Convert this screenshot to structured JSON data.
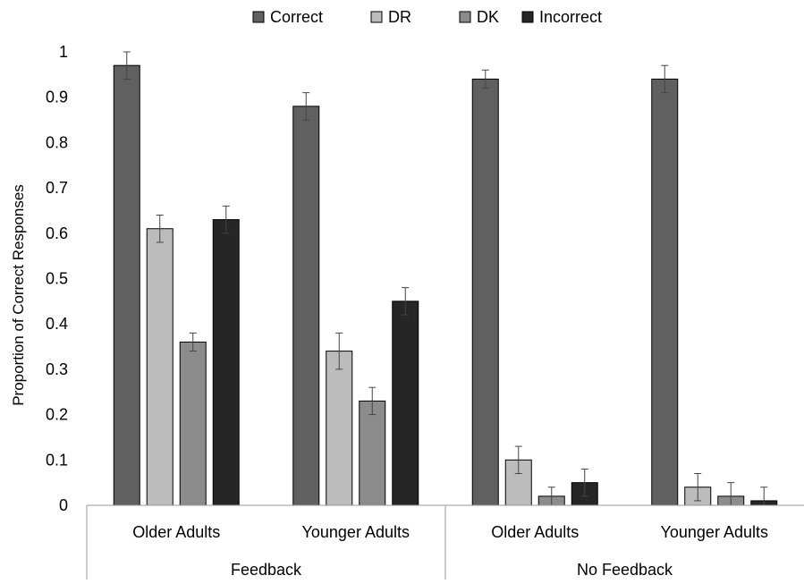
{
  "chart_data": {
    "type": "bar",
    "title": "",
    "ylabel": "Proportion of Correct Responses",
    "xlabel": "",
    "ylim": [
      0,
      1
    ],
    "yticks": [
      0,
      0.1,
      0.2,
      0.3,
      0.4,
      0.5,
      0.6,
      0.7,
      0.8,
      0.9,
      1
    ],
    "ytick_labels": [
      "0",
      "0.1",
      "0.2",
      "0.3",
      "0.4",
      "0.5",
      "0.6",
      "0.7",
      "0.8",
      "0.9",
      "1"
    ],
    "grid": false,
    "legend_position": "top",
    "groups": [
      {
        "label": "Feedback",
        "subcategories": [
          "Older Adults",
          "Younger Adults"
        ]
      },
      {
        "label": "No Feedback",
        "subcategories": [
          "Older Adults",
          "Younger Adults"
        ]
      }
    ],
    "categories": [
      "Older Adults",
      "Younger Adults",
      "Older Adults",
      "Younger Adults"
    ],
    "series": [
      {
        "name": "Correct",
        "color": "#606060",
        "values": [
          0.97,
          0.88,
          0.94,
          0.94
        ],
        "errors": [
          0.03,
          0.03,
          0.02,
          0.03
        ]
      },
      {
        "name": "DR",
        "color": "#bcbcbc",
        "values": [
          0.61,
          0.34,
          0.1,
          0.04
        ],
        "errors": [
          0.03,
          0.04,
          0.03,
          0.03
        ]
      },
      {
        "name": "DK",
        "color": "#8c8c8c",
        "values": [
          0.36,
          0.23,
          0.02,
          0.02
        ],
        "errors": [
          0.02,
          0.03,
          0.02,
          0.03
        ]
      },
      {
        "name": "Incorrect",
        "color": "#262626",
        "values": [
          0.63,
          0.45,
          0.05,
          0.01
        ],
        "errors": [
          0.03,
          0.03,
          0.03,
          0.03
        ]
      }
    ]
  }
}
